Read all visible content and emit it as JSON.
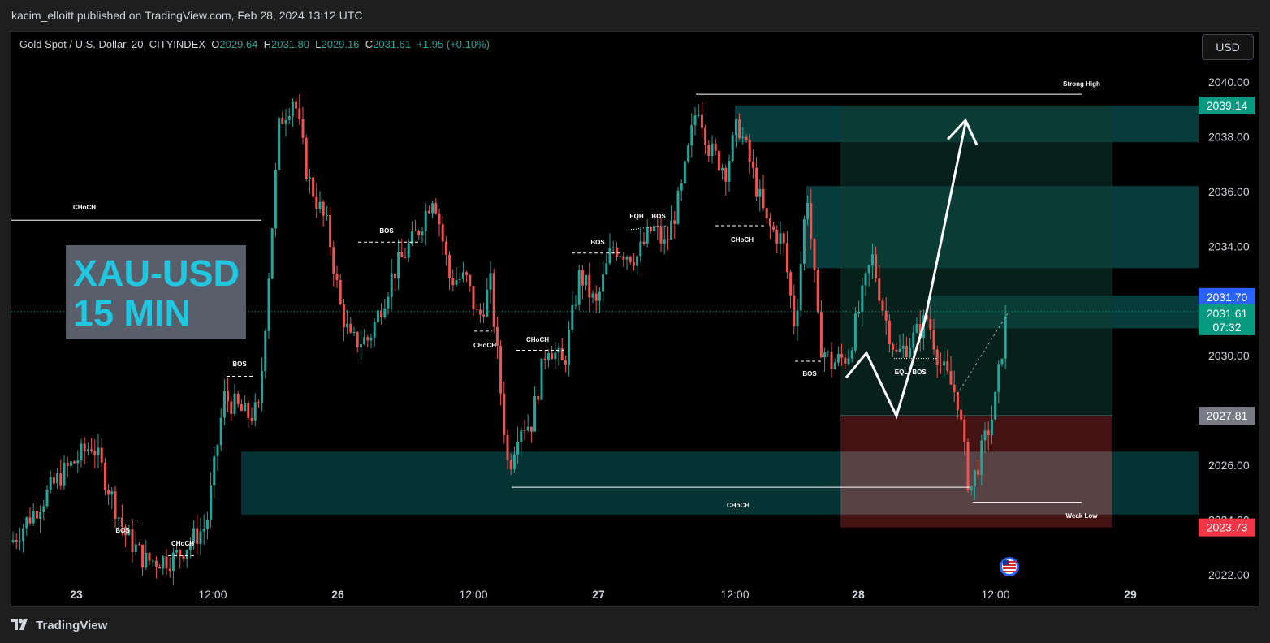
{
  "header": {
    "published": "kacim_elloitt published on TradingView.com, Feb 28, 2024 13:12 UTC"
  },
  "symbol": {
    "name": "Gold Spot / U.S. Dollar, 20, CITYINDEX",
    "o_label": "O",
    "o": "2029.64",
    "h_label": "H",
    "h": "2031.80",
    "l_label": "L",
    "l": "2029.16",
    "c_label": "C",
    "c": "2031.61",
    "change": "+1.95 (+0.10%)"
  },
  "currency_button": "USD",
  "overlay": {
    "line1": "XAU-USD",
    "line2": " 15 MIN"
  },
  "y_axis": {
    "ticks": [
      "2040.00",
      "2038.00",
      "2036.00",
      "2034.00",
      "2032.00",
      "2030.00",
      "2028.00",
      "2026.00",
      "2024.00",
      "2022.00"
    ],
    "range": [
      2021.5,
      2041.2
    ]
  },
  "x_axis": {
    "ticks": [
      "23",
      "12:00",
      "26",
      "12:00",
      "27",
      "12:00",
      "28",
      "12:00",
      "29"
    ]
  },
  "price_tags": {
    "top": "2039.14",
    "blue": "2031.70",
    "current": "2031.61",
    "countdown": "07:32",
    "entry": "2027.81",
    "stop": "2023.73"
  },
  "annotations": {
    "strong_high": "Strong High",
    "weak_low": "Weak Low",
    "choch": "CHoCH",
    "bos": "BOS",
    "eqh": "EQH",
    "eql": "EQL"
  },
  "colors": {
    "up": "#26a69a",
    "down": "#ef5350",
    "zone": "#0b6e6e",
    "target": "#0f3b2f",
    "stop": "#5a1a1a",
    "blue_tag": "#2962ff",
    "current_tag": "#089981",
    "stop_tag": "#f23645"
  },
  "footer": {
    "brand": "TradingView"
  }
}
